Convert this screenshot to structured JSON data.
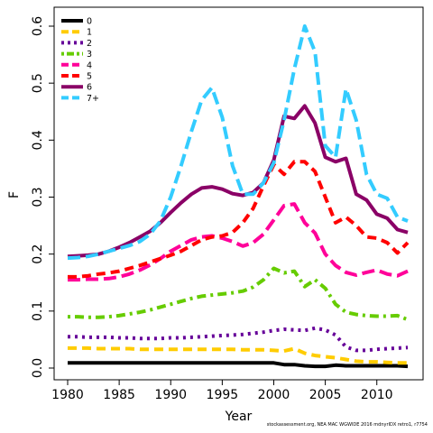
{
  "chart_data": {
    "type": "line",
    "xlabel": "Year",
    "ylabel": "F",
    "xlim": [
      1980,
      2013
    ],
    "ylim": [
      0,
      0.6
    ],
    "x_ticks": [
      1980,
      1985,
      1990,
      1995,
      2000,
      2005,
      2010
    ],
    "y_ticks": [
      0.0,
      0.1,
      0.2,
      0.3,
      0.4,
      0.5,
      0.6
    ],
    "y_tick_labels": [
      "0.0",
      "0.1",
      "0.2",
      "0.3",
      "0.4",
      "0.5",
      "0.6"
    ],
    "legend_position": "top-left",
    "grid": false,
    "x": [
      1980,
      1981,
      1982,
      1983,
      1984,
      1985,
      1986,
      1987,
      1988,
      1989,
      1990,
      1991,
      1992,
      1993,
      1994,
      1995,
      1996,
      1997,
      1998,
      1999,
      2000,
      2001,
      2002,
      2003,
      2004,
      2005,
      2006,
      2007,
      2008,
      2009,
      2010,
      2011,
      2012,
      2013
    ],
    "series": [
      {
        "name": "0",
        "color": "#000000",
        "dash": "solid",
        "values": [
          0.009,
          0.009,
          0.009,
          0.009,
          0.009,
          0.009,
          0.009,
          0.009,
          0.009,
          0.009,
          0.009,
          0.009,
          0.009,
          0.009,
          0.009,
          0.009,
          0.009,
          0.009,
          0.009,
          0.009,
          0.009,
          0.006,
          0.006,
          0.004,
          0.003,
          0.003,
          0.005,
          0.004,
          0.004,
          0.004,
          0.004,
          0.004,
          0.004,
          0.003
        ]
      },
      {
        "name": "1",
        "color": "#ffcc00",
        "dash": "dash",
        "values": [
          0.035,
          0.035,
          0.035,
          0.034,
          0.034,
          0.034,
          0.034,
          0.033,
          0.033,
          0.033,
          0.033,
          0.033,
          0.033,
          0.033,
          0.033,
          0.033,
          0.033,
          0.032,
          0.032,
          0.032,
          0.031,
          0.03,
          0.034,
          0.026,
          0.022,
          0.02,
          0.018,
          0.015,
          0.012,
          0.011,
          0.011,
          0.01,
          0.009,
          0.009
        ]
      },
      {
        "name": "2",
        "color": "#660099",
        "dash": "dot",
        "values": [
          0.055,
          0.055,
          0.054,
          0.054,
          0.054,
          0.053,
          0.053,
          0.052,
          0.052,
          0.052,
          0.053,
          0.053,
          0.054,
          0.055,
          0.056,
          0.057,
          0.058,
          0.059,
          0.061,
          0.063,
          0.066,
          0.068,
          0.067,
          0.066,
          0.07,
          0.067,
          0.058,
          0.037,
          0.031,
          0.031,
          0.033,
          0.034,
          0.035,
          0.036
        ]
      },
      {
        "name": "3",
        "color": "#66cc00",
        "dash": "dashdot",
        "values": [
          0.09,
          0.09,
          0.089,
          0.089,
          0.09,
          0.092,
          0.095,
          0.098,
          0.102,
          0.107,
          0.112,
          0.117,
          0.122,
          0.126,
          0.128,
          0.13,
          0.132,
          0.135,
          0.142,
          0.155,
          0.175,
          0.167,
          0.17,
          0.143,
          0.155,
          0.14,
          0.112,
          0.098,
          0.094,
          0.092,
          0.091,
          0.091,
          0.092,
          0.085
        ]
      },
      {
        "name": "4",
        "color": "#ff0099",
        "dash": "longdash",
        "values": [
          0.155,
          0.155,
          0.156,
          0.156,
          0.157,
          0.16,
          0.165,
          0.172,
          0.181,
          0.192,
          0.205,
          0.215,
          0.225,
          0.23,
          0.232,
          0.228,
          0.222,
          0.214,
          0.22,
          0.235,
          0.26,
          0.285,
          0.288,
          0.255,
          0.237,
          0.2,
          0.18,
          0.168,
          0.163,
          0.168,
          0.172,
          0.165,
          0.162,
          0.17
        ]
      },
      {
        "name": "5",
        "color": "#ff0000",
        "dash": "dash",
        "values": [
          0.16,
          0.16,
          0.162,
          0.165,
          0.167,
          0.17,
          0.175,
          0.18,
          0.186,
          0.192,
          0.198,
          0.205,
          0.215,
          0.225,
          0.23,
          0.232,
          0.238,
          0.255,
          0.28,
          0.32,
          0.357,
          0.34,
          0.362,
          0.362,
          0.345,
          0.3,
          0.255,
          0.265,
          0.25,
          0.23,
          0.228,
          0.22,
          0.202,
          0.22
        ]
      },
      {
        "name": "6",
        "color": "#8a0066",
        "dash": "solid",
        "values": [
          0.196,
          0.197,
          0.198,
          0.2,
          0.205,
          0.212,
          0.22,
          0.23,
          0.24,
          0.255,
          0.273,
          0.29,
          0.305,
          0.316,
          0.318,
          0.314,
          0.306,
          0.303,
          0.308,
          0.325,
          0.365,
          0.442,
          0.438,
          0.46,
          0.43,
          0.37,
          0.362,
          0.368,
          0.305,
          0.295,
          0.27,
          0.263,
          0.243,
          0.238
        ]
      },
      {
        "name": "7+",
        "color": "#33ccff",
        "dash": "longdash",
        "values": [
          0.193,
          0.194,
          0.196,
          0.2,
          0.205,
          0.21,
          0.215,
          0.222,
          0.235,
          0.258,
          0.3,
          0.355,
          0.415,
          0.47,
          0.492,
          0.44,
          0.355,
          0.305,
          0.305,
          0.325,
          0.36,
          0.435,
          0.525,
          0.6,
          0.555,
          0.39,
          0.37,
          0.49,
          0.435,
          0.34,
          0.305,
          0.298,
          0.265,
          0.258
        ]
      }
    ]
  },
  "footer_text": "stockassessment.org, NEA MAC WGWIDE 2016 mdnyrIDX retro1, r7754"
}
